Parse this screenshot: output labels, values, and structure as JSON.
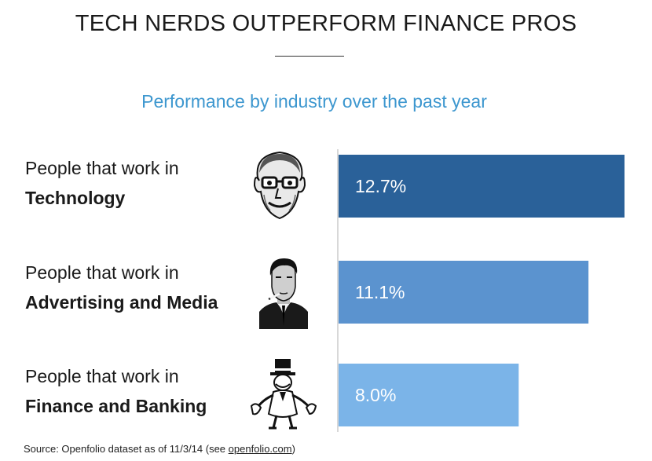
{
  "title": "TECH NERDS OUTPERFORM FINANCE PROS",
  "subtitle": "Performance by industry over the past year",
  "source": {
    "prefix": "Source: Openfolio dataset as of 11/3/14 (see ",
    "link": "openfolio.com",
    "suffix": ")"
  },
  "colors": {
    "title_text": "#1a1a1a",
    "subtitle_text": "#3d97cf",
    "bar_technology": "#2a6199",
    "bar_advertising": "#5b93cf",
    "bar_finance": "#7bb4e8",
    "axis": "#cccccc"
  },
  "rows": [
    {
      "line1": "People that work in",
      "line2": "Technology",
      "icon": "bill-gates-portrait-icon"
    },
    {
      "line1": "People that work in",
      "line2": "Advertising and Media",
      "icon": "don-draper-portrait-icon"
    },
    {
      "line1": "People that work in",
      "line2": "Finance and Banking",
      "icon": "monopoly-man-icon"
    }
  ],
  "chart_data": {
    "type": "bar",
    "orientation": "horizontal",
    "title": "TECH NERDS OUTPERFORM FINANCE PROS",
    "subtitle": "Performance by industry over the past year",
    "categories": [
      "People that work in Technology",
      "People that work in Advertising and Media",
      "People that work in Finance and Banking"
    ],
    "values": [
      12.7,
      11.1,
      8.0
    ],
    "value_labels": [
      "12.7%",
      "11.1%",
      "8.0%"
    ],
    "xlabel": "",
    "ylabel": "",
    "xlim": [
      0,
      12.7
    ],
    "grid": false,
    "legend": "none"
  }
}
